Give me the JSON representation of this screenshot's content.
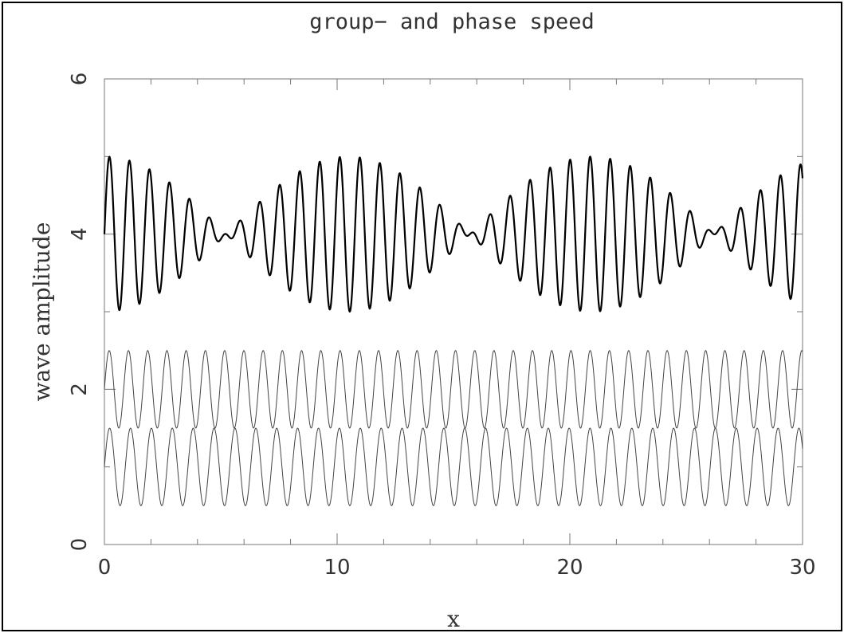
{
  "chart_data": {
    "type": "line",
    "title": "group− and phase speed",
    "xlabel": "x",
    "ylabel": "wave amplitude",
    "xlim": [
      0,
      30
    ],
    "ylim": [
      0,
      6
    ],
    "x_ticks": [
      "0",
      "10",
      "20",
      "30"
    ],
    "y_ticks": [
      "0",
      "2",
      "4",
      "6"
    ],
    "grid": false,
    "legend": "none",
    "series": [
      {
        "kind": "sine",
        "offset": 1,
        "amplitude": 0.5,
        "wavenumber": 7.0,
        "color": "#444444",
        "line_style": "thin"
      },
      {
        "kind": "sine",
        "offset": 2,
        "amplitude": 0.5,
        "wavenumber": 7.6,
        "color": "#444444",
        "line_style": "thin"
      },
      {
        "kind": "sum",
        "offset": 4,
        "components": [
          0,
          1
        ],
        "color": "#000000",
        "line_style": "thick"
      }
    ]
  }
}
